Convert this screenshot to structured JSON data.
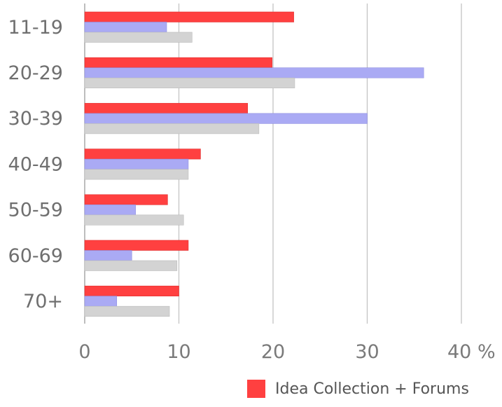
{
  "chart_data": {
    "type": "bar",
    "orientation": "horizontal",
    "categories": [
      "11-19",
      "20-29",
      "30-39",
      "40-49",
      "50-59",
      "60-69",
      "70+"
    ],
    "series": [
      {
        "name": "Idea Collection + Forums",
        "color": "#ff4040",
        "values": [
          22.2,
          19.9,
          17.3,
          12.3,
          8.8,
          11.0,
          10.0
        ]
      },
      {
        "color": "#aaaaf4",
        "values": [
          8.7,
          36.0,
          30.0,
          11.0,
          5.4,
          5.0,
          3.4
        ]
      },
      {
        "color": "#d3d3d3",
        "values": [
          11.4,
          22.3,
          18.5,
          11.0,
          10.5,
          9.8,
          9.0
        ]
      }
    ],
    "xlim": [
      0,
      40
    ],
    "x_ticks": [
      "0",
      "10",
      "20",
      "30",
      "40 %"
    ],
    "x_tick_values": [
      0,
      10,
      20,
      30,
      40
    ],
    "grid": true,
    "legend_position": "bottom-right"
  }
}
